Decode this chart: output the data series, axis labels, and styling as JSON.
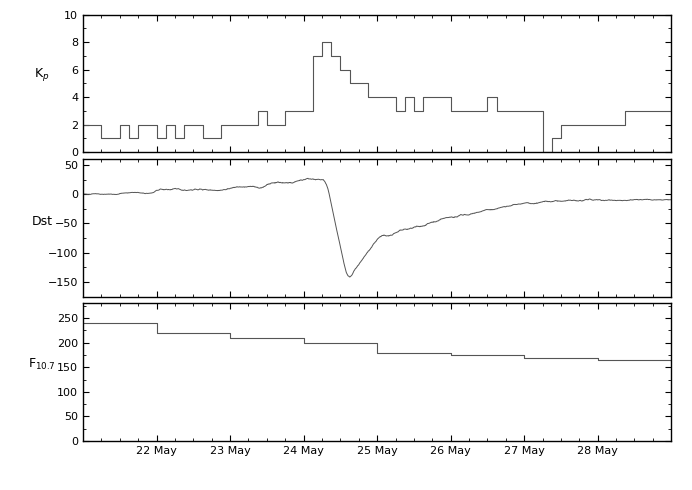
{
  "title": "",
  "xlabel": "",
  "date_start": 21.0,
  "date_end": 29.0,
  "xtick_positions": [
    22,
    23,
    24,
    25,
    26,
    27,
    28
  ],
  "xtick_labels": [
    "22 May",
    "23 May",
    "24 May",
    "25 May",
    "26 May",
    "27 May",
    "28 May"
  ],
  "kp_times": [
    21.0,
    21.125,
    21.25,
    21.375,
    21.5,
    21.625,
    21.75,
    21.875,
    22.0,
    22.125,
    22.25,
    22.375,
    22.5,
    22.625,
    22.75,
    22.875,
    23.0,
    23.125,
    23.25,
    23.375,
    23.5,
    23.625,
    23.75,
    23.875,
    24.0,
    24.125,
    24.25,
    24.375,
    24.5,
    24.625,
    24.75,
    24.875,
    25.0,
    25.125,
    25.25,
    25.375,
    25.5,
    25.625,
    25.75,
    25.875,
    26.0,
    26.125,
    26.25,
    26.375,
    26.5,
    26.625,
    26.75,
    26.875,
    27.0,
    27.125,
    27.25,
    27.375,
    27.5,
    27.625,
    27.75,
    27.875,
    28.0,
    28.125,
    28.25,
    28.375,
    28.5,
    28.625,
    28.75,
    28.875
  ],
  "kp_values": [
    2,
    2,
    1,
    1,
    2,
    1,
    2,
    2,
    1,
    2,
    1,
    2,
    2,
    1,
    1,
    2,
    2,
    2,
    2,
    3,
    2,
    2,
    3,
    3,
    3,
    7,
    8,
    7,
    6,
    5,
    5,
    4,
    4,
    4,
    3,
    4,
    3,
    4,
    4,
    4,
    3,
    3,
    3,
    3,
    4,
    3,
    3,
    3,
    3,
    3,
    0,
    1,
    2,
    2,
    2,
    2,
    2,
    2,
    2,
    3,
    3,
    3,
    3,
    3
  ],
  "kp_ylim": [
    0,
    10
  ],
  "kp_yticks": [
    0,
    2,
    4,
    6,
    8,
    10
  ],
  "kp_ylabel": "K$_p$",
  "dst_ylim": [
    -175,
    60
  ],
  "dst_yticks": [
    -150,
    -100,
    -50,
    0,
    50
  ],
  "dst_ylabel": "Dst",
  "f107_times": [
    21.0,
    22.0,
    23.0,
    24.0,
    25.0,
    26.0,
    27.0,
    28.0,
    29.0
  ],
  "f107_values": [
    240,
    220,
    210,
    200,
    180,
    175,
    170,
    165,
    163
  ],
  "f107_ylim": [
    0,
    280
  ],
  "f107_yticks": [
    0,
    50,
    100,
    150,
    200,
    250
  ],
  "f107_ylabel": "F$_{10.7}$",
  "line_color": "#555555",
  "bg_color": "#ffffff",
  "axes_color": "#000000"
}
